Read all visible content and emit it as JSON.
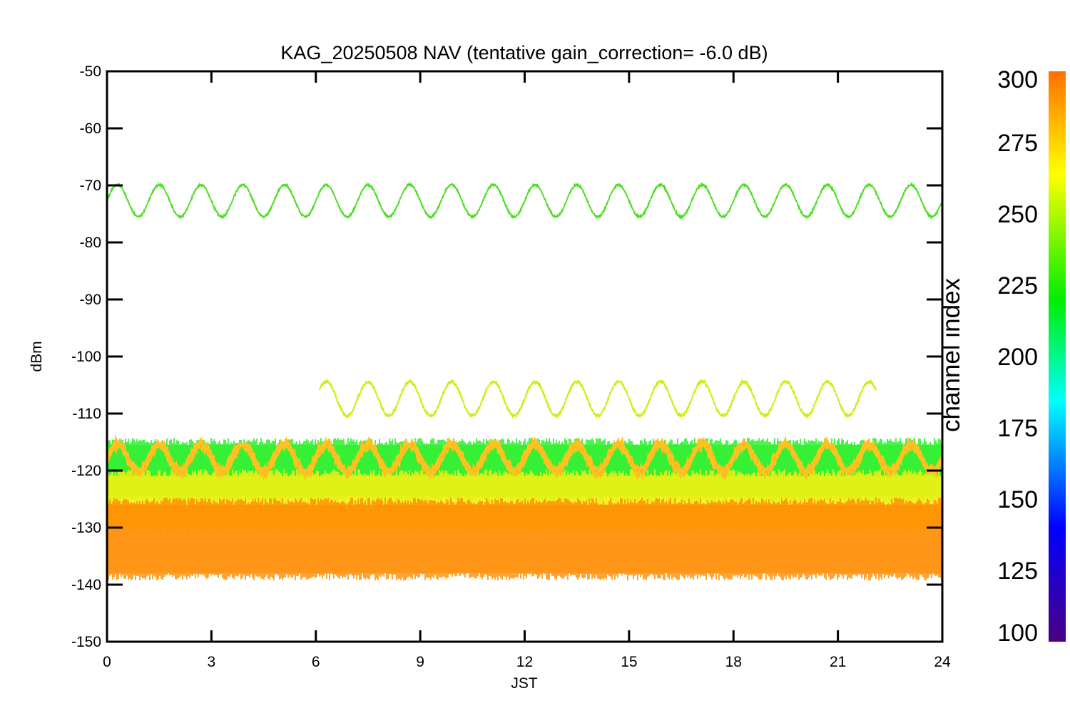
{
  "chart_data": {
    "type": "line",
    "title": "KAG_20250508 NAV (tentative gain_correction= -6.0 dB)",
    "xlabel": "JST",
    "ylabel": "dBm",
    "xlim": [
      0,
      24
    ],
    "ylim": [
      -150,
      -50
    ],
    "xticks": [
      "0",
      "3",
      "6",
      "9",
      "12",
      "15",
      "18",
      "21",
      "24"
    ],
    "yticks": [
      "-50",
      "-60",
      "-70",
      "-80",
      "-90",
      "-100",
      "-110",
      "-120",
      "-130",
      "-140",
      "-150"
    ],
    "colorbar": {
      "label": "channel index",
      "range": [
        100,
        300
      ],
      "ticks": [
        "300",
        "275",
        "250",
        "225",
        "200",
        "175",
        "150",
        "125",
        "100"
      ],
      "colors": [
        "#4b0082",
        "#0000ff",
        "#00ffff",
        "#00ff00",
        "#ffff00",
        "#ff8000"
      ]
    },
    "series": [
      {
        "channel": 240,
        "color": "#4cdd22",
        "x_start": 0,
        "x_end": 24,
        "center": -72.7,
        "amplitude": 2.8,
        "period_h": 1.2,
        "noise": 0.15
      },
      {
        "channel": 268,
        "color": "#ccee11",
        "x_start": 6.1,
        "x_end": 22.1,
        "center": -107.4,
        "amplitude": 3.0,
        "period_h": 1.2,
        "noise": 0.25
      },
      {
        "channel": 290,
        "color": "#ffc020",
        "x_start": 0,
        "x_end": 24,
        "center": -117.8,
        "amplitude": 2.4,
        "period_h": 1.2,
        "noise": 0.3
      }
    ],
    "noise_bands": [
      {
        "label": "channels 230-255",
        "color": "#22ee22",
        "top": -115.5,
        "bottom": -124.5
      },
      {
        "label": "channels 260-275",
        "color": "#f0f011",
        "top": -121,
        "bottom": -130
      },
      {
        "label": "channels 280-300",
        "color": "#ff8c00",
        "top": -126,
        "bottom": -138
      }
    ]
  }
}
